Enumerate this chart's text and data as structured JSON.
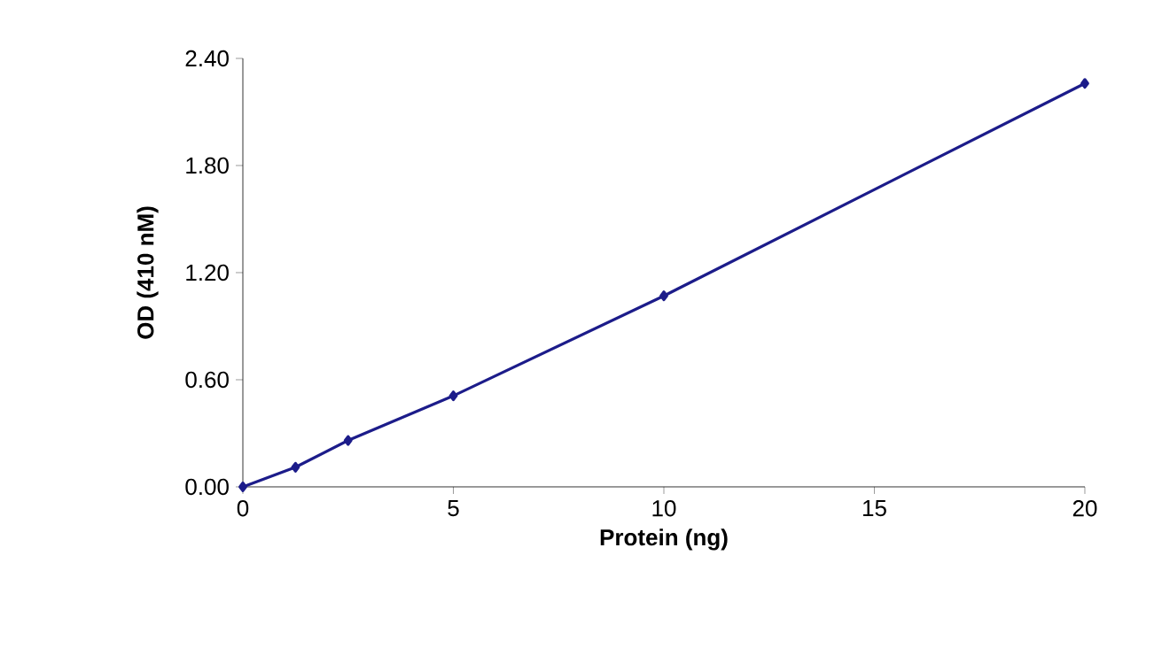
{
  "chart_data": {
    "type": "line",
    "xlabel": "Protein (ng)",
    "ylabel": "OD (410 nM)",
    "x": [
      0,
      1.25,
      2.5,
      5,
      10,
      20
    ],
    "series": [
      {
        "color": "#1c1c8a",
        "values": [
          0,
          0.11,
          0.26,
          0.51,
          1.07,
          2.26
        ]
      }
    ],
    "xlim": [
      0,
      20
    ],
    "xticks": [
      0,
      5,
      10,
      15,
      20
    ],
    "ylim": [
      0,
      2.4
    ],
    "yticks": [
      {
        "value": 0,
        "label": "0.00"
      },
      {
        "value": 0.6,
        "label": "0.60"
      },
      {
        "value": 1.2,
        "label": "1.20"
      },
      {
        "value": 1.8,
        "label": "1.80"
      },
      {
        "value": 2.4,
        "label": "2.40"
      }
    ],
    "marker": "diamond",
    "line_style": "solid",
    "grid": false
  }
}
